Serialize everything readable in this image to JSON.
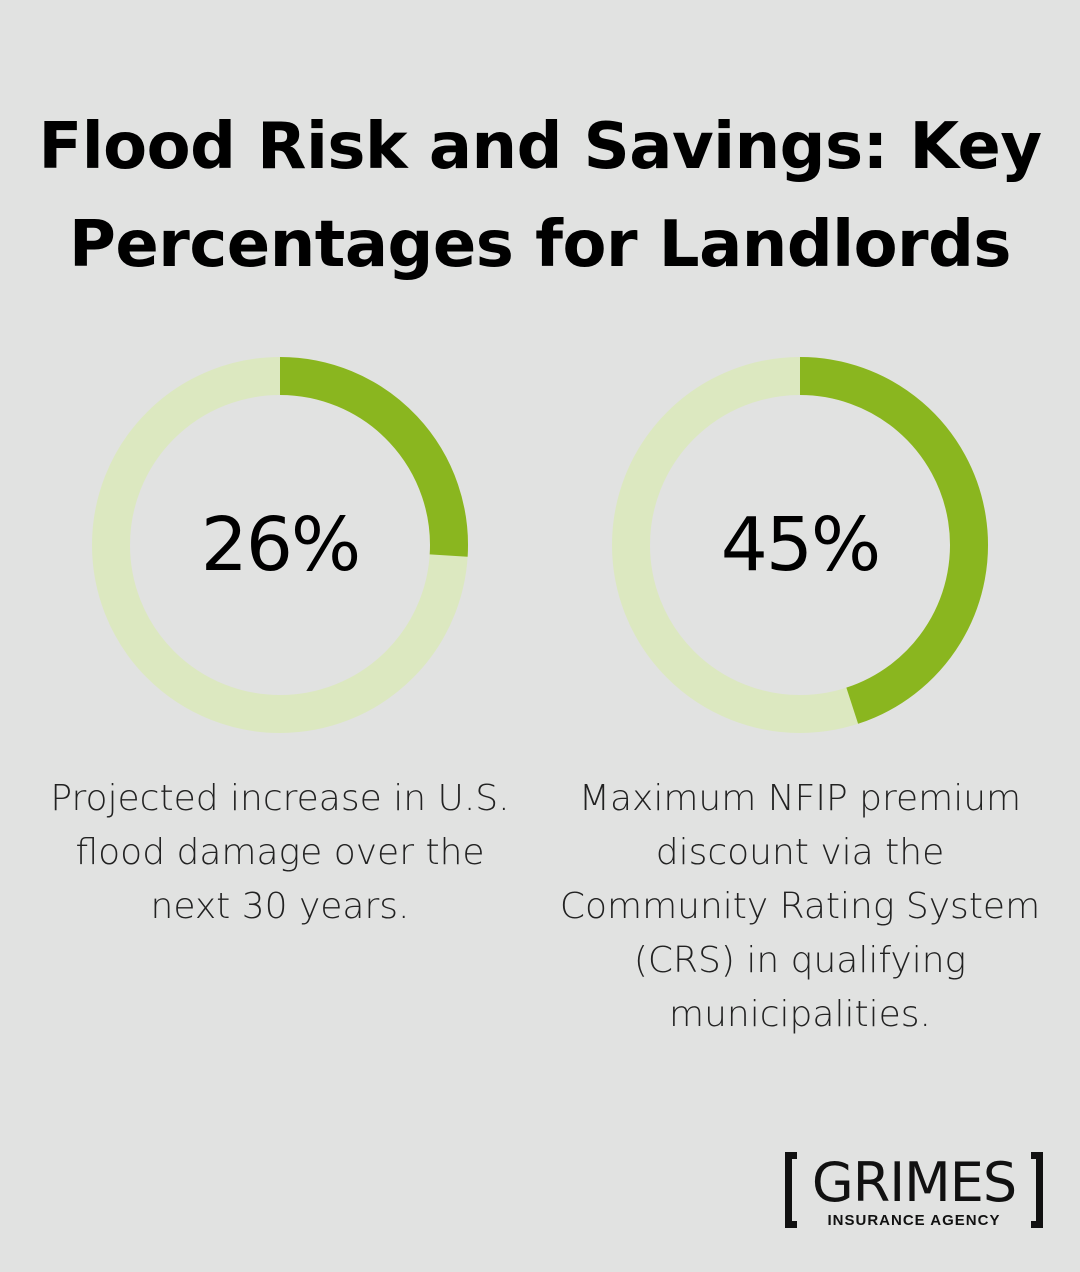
{
  "title_line1": "Flood Risk and Savings: Key",
  "title_line2": "Percentages for Landlords",
  "colors": {
    "background": "#e1e2e1",
    "track": "#dce8c0",
    "fill": "#8ab61f"
  },
  "chart_data": [
    {
      "type": "pie",
      "variant": "donut",
      "value": 26,
      "max": 100,
      "label": "26%",
      "description": "Projected increase in U.S. flood damage over the next 30 years."
    },
    {
      "type": "pie",
      "variant": "donut",
      "value": 45,
      "max": 100,
      "label": "45%",
      "description": "Maximum NFIP premium discount via the Community Rating System (CRS) in qualifying municipalities."
    }
  ],
  "logo": {
    "name": "GRIMES",
    "sub": "INSURANCE AGENCY"
  }
}
